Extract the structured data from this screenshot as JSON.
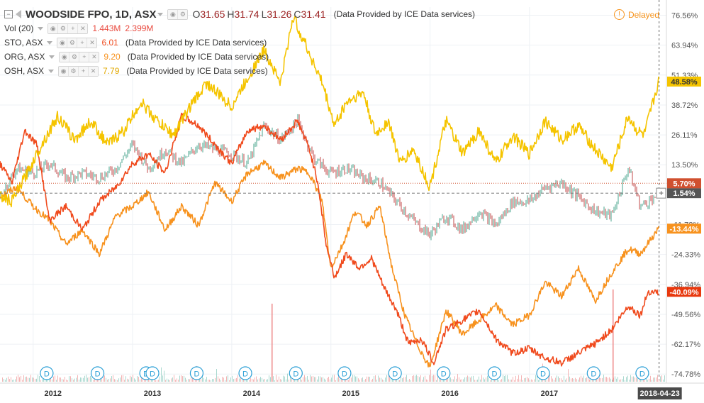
{
  "symbol": {
    "title": "WOODSIDE FPO, 1D, ASX",
    "open_label": "O",
    "open": "31.65",
    "high_label": "H",
    "high": "31.74",
    "low_label": "L",
    "low": "31.26",
    "close_label": "C",
    "close": "31.41",
    "provider": "(Data Provided by ICE Data services)"
  },
  "status": {
    "delayed": "Delayed"
  },
  "legend": {
    "volume": {
      "label": "Vol (20)",
      "value1": "1.443M",
      "value2": "2.399M"
    },
    "compare": [
      {
        "label": "STO, ASX",
        "value": "6.01",
        "provider": "(Data Provided by ICE Data services)",
        "color": "#f04b1e"
      },
      {
        "label": "ORG, ASX",
        "value": "9.20",
        "provider": "(Data Provided by ICE Data services)",
        "color": "#f7921e"
      },
      {
        "label": "OSH, ASX",
        "value": "7.79",
        "provider": "(Data Provided by ICE Data services)",
        "color": "#f5c400"
      }
    ]
  },
  "icons": {
    "dividend": "D",
    "plus": "+",
    "collapse": "−",
    "delayed": "!"
  },
  "chart_data": {
    "type": "line",
    "y_axis": {
      "unit": "%",
      "ticks": [
        "76.56%",
        "63.94%",
        "51.33%",
        "38.72%",
        "26.11%",
        "13.50%",
        "-11.72%",
        "-24.33%",
        "-36.94%",
        "-49.56%",
        "-62.17%",
        "-74.78%"
      ],
      "range": [
        -78,
        80
      ]
    },
    "x_axis": {
      "ticks": [
        "2012",
        "2013",
        "2014",
        "2015",
        "2016",
        "2017",
        "2018-04-23"
      ],
      "range": [
        "2011-09-01",
        "2018-05-20"
      ]
    },
    "crosshair_date": "2018-04-23",
    "series": [
      {
        "name": "WOODSIDE FPO",
        "style": "candles",
        "color": "#555555",
        "last": "1.54%",
        "badge_color": "#555555",
        "x": [
          "2011-09-01",
          "2011-10-01",
          "2011-11-01",
          "2012-01-01",
          "2012-03-01",
          "2012-05-01",
          "2012-07-01",
          "2012-09-01",
          "2012-11-01",
          "2013-01-01",
          "2013-03-01",
          "2013-05-01",
          "2013-07-01",
          "2013-09-01",
          "2013-11-01",
          "2014-01-01",
          "2014-03-01",
          "2014-05-01",
          "2014-07-01",
          "2014-09-01",
          "2014-11-01",
          "2015-01-01",
          "2015-03-01",
          "2015-05-01",
          "2015-07-01",
          "2015-09-01",
          "2015-11-01",
          "2016-01-01",
          "2016-03-01",
          "2016-05-01",
          "2016-07-01",
          "2016-09-01",
          "2016-11-01",
          "2017-01-01",
          "2017-03-01",
          "2017-05-01",
          "2017-07-01",
          "2017-09-01",
          "2017-11-01",
          "2018-01-01",
          "2018-02-15",
          "2018-03-15",
          "2018-04-23"
        ],
        "y": [
          0,
          6,
          12,
          10,
          14,
          8,
          10,
          8,
          12,
          22,
          12,
          20,
          14,
          22,
          20,
          18,
          14,
          30,
          24,
          32,
          16,
          10,
          12,
          8,
          6,
          -2,
          -10,
          -16,
          -8,
          -14,
          -6,
          -12,
          -2,
          -2,
          4,
          6,
          0,
          -6,
          -8,
          12,
          -4,
          -2,
          1.54
        ]
      },
      {
        "name": "OSH, ASX",
        "style": "line",
        "color": "#f5c400",
        "last": "48.58%",
        "badge_color": "#f5c400",
        "x": [
          "2011-09-01",
          "2011-10-15",
          "2011-12-01",
          "2012-02-01",
          "2012-04-01",
          "2012-06-01",
          "2012-08-01",
          "2012-10-01",
          "2012-12-01",
          "2013-02-01",
          "2013-04-01",
          "2013-06-01",
          "2013-08-01",
          "2013-10-01",
          "2014-01-01",
          "2014-03-01",
          "2014-05-01",
          "2014-07-01",
          "2014-08-15",
          "2014-10-01",
          "2014-12-01",
          "2015-01-15",
          "2015-03-01",
          "2015-05-01",
          "2015-06-15",
          "2015-08-01",
          "2015-09-15",
          "2015-11-01",
          "2016-01-01",
          "2016-03-01",
          "2016-05-01",
          "2016-07-01",
          "2016-09-01",
          "2016-11-01",
          "2017-01-01",
          "2017-03-01",
          "2017-05-01",
          "2017-07-01",
          "2017-09-01",
          "2017-11-01",
          "2018-01-01",
          "2018-02-01",
          "2018-03-01",
          "2018-04-23"
        ],
        "y": [
          0,
          -2,
          8,
          22,
          34,
          24,
          32,
          22,
          28,
          40,
          32,
          26,
          38,
          48,
          38,
          50,
          62,
          48,
          76,
          64,
          48,
          30,
          40,
          44,
          26,
          32,
          14,
          20,
          4,
          32,
          18,
          28,
          14,
          26,
          18,
          32,
          24,
          30,
          20,
          12,
          34,
          28,
          26,
          48.58
        ]
      },
      {
        "name": "ORG, ASX",
        "style": "line",
        "color": "#f7921e",
        "last": "-13.44%",
        "badge_color": "#f7921e",
        "x": [
          "2011-09-01",
          "2011-11-01",
          "2012-01-01",
          "2012-03-01",
          "2012-05-01",
          "2012-07-01",
          "2012-09-01",
          "2012-11-01",
          "2013-01-01",
          "2013-03-01",
          "2013-05-01",
          "2013-07-01",
          "2013-09-01",
          "2013-11-01",
          "2014-01-01",
          "2014-03-01",
          "2014-05-01",
          "2014-07-01",
          "2014-09-01",
          "2014-10-15",
          "2014-12-01",
          "2015-01-01",
          "2015-02-15",
          "2015-04-01",
          "2015-05-15",
          "2015-07-01",
          "2015-08-15",
          "2015-10-01",
          "2015-11-15",
          "2016-01-01",
          "2016-03-01",
          "2016-05-01",
          "2016-07-01",
          "2016-09-01",
          "2016-11-01",
          "2017-01-01",
          "2017-03-01",
          "2017-05-01",
          "2017-07-01",
          "2017-09-01",
          "2017-11-01",
          "2018-01-01",
          "2018-02-15",
          "2018-04-23"
        ],
        "y": [
          0,
          4,
          -4,
          -10,
          -20,
          -14,
          -24,
          -8,
          -4,
          2,
          -14,
          -4,
          -12,
          6,
          -2,
          10,
          14,
          8,
          12,
          10,
          -2,
          -30,
          -20,
          -6,
          -12,
          -4,
          -30,
          -50,
          -62,
          -72,
          -48,
          -58,
          -52,
          -46,
          -54,
          -50,
          -36,
          -42,
          -30,
          -44,
          -32,
          -22,
          -24,
          -13.44
        ]
      },
      {
        "name": "STO, ASX",
        "style": "line",
        "color": "#f04b1e",
        "last": "-40.09%",
        "badge_color": "#e8380d",
        "x": [
          "2011-09-01",
          "2011-10-15",
          "2011-12-01",
          "2012-01-15",
          "2012-03-01",
          "2012-05-01",
          "2012-07-01",
          "2012-09-01",
          "2012-11-01",
          "2013-01-01",
          "2013-03-01",
          "2013-05-01",
          "2013-07-01",
          "2013-09-01",
          "2013-11-01",
          "2014-01-01",
          "2014-03-01",
          "2014-05-01",
          "2014-07-01",
          "2014-09-01",
          "2014-10-15",
          "2014-11-15",
          "2014-12-15",
          "2015-01-15",
          "2015-03-01",
          "2015-04-15",
          "2015-06-01",
          "2015-07-15",
          "2015-09-01",
          "2015-10-15",
          "2015-12-01",
          "2016-01-15",
          "2016-03-01",
          "2016-05-01",
          "2016-07-01",
          "2016-09-01",
          "2016-11-01",
          "2017-01-01",
          "2017-03-01",
          "2017-05-01",
          "2017-07-01",
          "2017-09-01",
          "2017-11-01",
          "2018-01-01",
          "2018-02-15",
          "2018-03-15",
          "2018-04-23"
        ],
        "y": [
          14,
          6,
          28,
          22,
          -10,
          -4,
          -14,
          -2,
          4,
          14,
          18,
          10,
          34,
          30,
          22,
          14,
          28,
          30,
          24,
          32,
          20,
          6,
          -20,
          -34,
          -24,
          -30,
          -26,
          -38,
          -48,
          -62,
          -60,
          -70,
          -56,
          -52,
          -48,
          -60,
          -66,
          -64,
          -68,
          -70,
          -66,
          -62,
          -56,
          -46,
          -50,
          -40,
          -40.09
        ]
      }
    ],
    "ref_lines": [
      {
        "value": 5.7,
        "label": "5.70%",
        "color": "#d0502f",
        "style": "dotted"
      },
      {
        "value": 1.54,
        "label": "1.54%",
        "color": "#777777",
        "style": "dashed"
      }
    ],
    "dividend_markers": [
      "2012-02-20",
      "2012-08-25",
      "2013-02-20",
      "2013-03-15",
      "2013-08-25",
      "2014-02-20",
      "2014-08-25",
      "2015-02-20",
      "2015-08-25",
      "2016-02-20",
      "2016-08-25",
      "2017-02-20",
      "2017-08-25",
      "2018-02-20"
    ]
  }
}
